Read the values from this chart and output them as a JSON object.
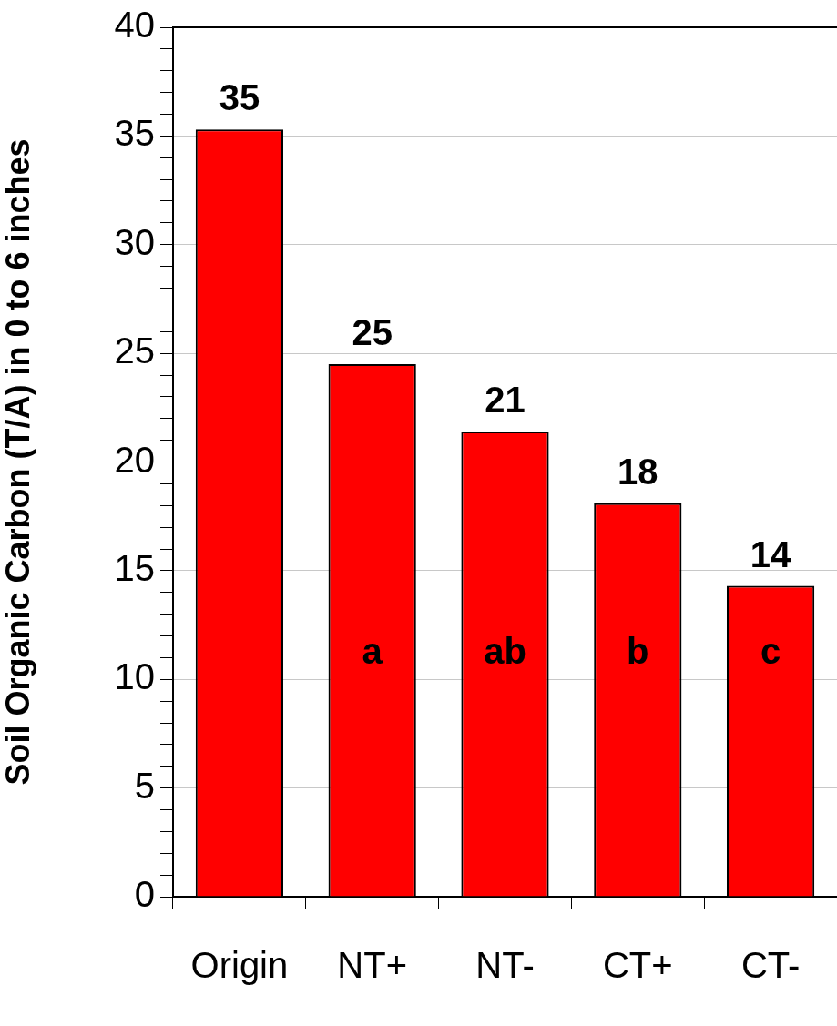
{
  "chart_data": {
    "type": "bar",
    "ylabel": "Soil Organic Carbon (T/A) in 0 to 6 inches",
    "categories": [
      "Origin",
      "NT+",
      "NT-",
      "CT+",
      "CT-"
    ],
    "values": [
      35.3,
      24.5,
      21.4,
      18.1,
      14.3
    ],
    "color": "#ff0000",
    "value_labels": [
      "35",
      "25",
      "21",
      "18",
      "14"
    ],
    "annotations": [
      "a",
      "ab",
      "b",
      "c"
    ],
    "ylim": [
      0,
      40
    ],
    "yticks": [
      0,
      {
        "value": 1,
        "label": null
      },
      {
        "value": 2,
        "label": null
      },
      {
        "value": 3,
        "label": null
      },
      {
        "value": 4,
        "label": null
      },
      5,
      {
        "value": 6,
        "label": null
      },
      {
        "value": 7,
        "label": null
      },
      {
        "value": 8,
        "label": null
      },
      {
        "value": 9,
        "label": null
      },
      10,
      {
        "value": 11,
        "label": null
      },
      {
        "value": 12,
        "label": null
      },
      {
        "value": 13,
        "label": null
      },
      {
        "value": 14,
        "label": null
      },
      15,
      {
        "value": 16,
        "label": null
      },
      {
        "value": 17,
        "label": null
      },
      {
        "value": 18,
        "label": null
      },
      {
        "value": 19,
        "label": null
      },
      20,
      {
        "value": 21,
        "label": null
      },
      {
        "value": 22,
        "label": null
      },
      {
        "value": 23,
        "label": null
      },
      {
        "value": 24,
        "label": null
      },
      25,
      {
        "value": 26,
        "label": null
      },
      {
        "value": 27,
        "label": null
      },
      {
        "value": 28,
        "label": null
      },
      {
        "value": 29,
        "label": null
      },
      30,
      {
        "value": 31,
        "label": null
      },
      {
        "value": 32,
        "label": null
      },
      {
        "value": 33,
        "label": null
      },
      {
        "value": 34,
        "label": null
      },
      35,
      {
        "value": 36,
        "label": null
      },
      {
        "value": 37,
        "label": null
      },
      {
        "value": 38,
        "label": null
      },
      {
        "value": 39,
        "label": null
      },
      40
    ],
    "grid": "y",
    "legend": false
  }
}
